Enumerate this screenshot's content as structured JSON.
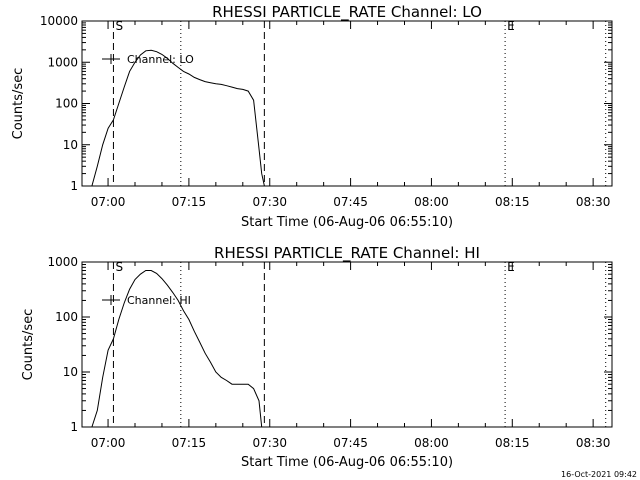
{
  "chart_data": [
    {
      "type": "line",
      "title": "RHESSI PARTICLE_RATE Channel: LO",
      "xlabel": "Start Time (06-Aug-06 06:55:10)",
      "ylabel": "Counts/sec",
      "y_scale": "log",
      "xlim": [
        "06:55:10",
        "08:33:30"
      ],
      "ylim": [
        1,
        10000
      ],
      "x_ticks": [
        "07:00",
        "07:15",
        "07:30",
        "07:45",
        "08:00",
        "08:15",
        "08:30"
      ],
      "y_ticks": [
        "1",
        "10",
        "100",
        "1000",
        "10000"
      ],
      "legend": {
        "position": "top-left",
        "entries": [
          "Channel: LO"
        ]
      },
      "series": [
        {
          "name": "Channel: LO",
          "x": [
            "06:57:00",
            "06:58:00",
            "06:59:00",
            "07:00:00",
            "07:01:00",
            "07:02:00",
            "07:03:00",
            "07:04:00",
            "07:05:00",
            "07:06:00",
            "07:07:00",
            "07:08:00",
            "07:09:00",
            "07:10:00",
            "07:11:00",
            "07:12:00",
            "07:13:00",
            "07:14:00",
            "07:15:00",
            "07:16:00",
            "07:17:00",
            "07:18:00",
            "07:19:00",
            "07:20:00",
            "07:21:00",
            "07:22:00",
            "07:23:00",
            "07:24:00",
            "07:25:00",
            "07:26:00",
            "07:27:00",
            "07:28:00",
            "07:28:30",
            "07:29:00"
          ],
          "y": [
            1,
            3,
            10,
            25,
            40,
            100,
            250,
            600,
            1000,
            1500,
            1900,
            1950,
            1800,
            1550,
            1250,
            950,
            750,
            600,
            520,
            430,
            380,
            340,
            320,
            300,
            290,
            270,
            250,
            230,
            220,
            200,
            120,
            8,
            2,
            1
          ]
        }
      ],
      "annotations": [
        {
          "label": "S",
          "x": "07:01:00",
          "style": "dashed"
        },
        {
          "label": "",
          "x": "07:29:00",
          "style": "dashed"
        },
        {
          "label": "",
          "x": "07:13:30",
          "style": "dotted"
        },
        {
          "label": "E",
          "x": "08:13:40",
          "style": "dotted"
        },
        {
          "label": "",
          "x": "08:32:20",
          "style": "dotted"
        }
      ]
    },
    {
      "type": "line",
      "title": "RHESSI PARTICLE_RATE Channel: HI",
      "xlabel": "Start Time (06-Aug-06 06:55:10)",
      "ylabel": "Counts/sec",
      "y_scale": "log",
      "xlim": [
        "06:55:10",
        "08:33:30"
      ],
      "ylim": [
        1,
        1000
      ],
      "x_ticks": [
        "07:00",
        "07:15",
        "07:30",
        "07:45",
        "08:00",
        "08:15",
        "08:30"
      ],
      "y_ticks": [
        "1",
        "10",
        "100",
        "1000"
      ],
      "legend": {
        "position": "top-left",
        "entries": [
          "Channel: HI"
        ]
      },
      "series": [
        {
          "name": "Channel: HI",
          "x": [
            "06:57:00",
            "06:58:00",
            "06:59:00",
            "07:00:00",
            "07:01:00",
            "07:02:00",
            "07:03:00",
            "07:04:00",
            "07:05:00",
            "07:06:00",
            "07:07:00",
            "07:08:00",
            "07:09:00",
            "07:10:00",
            "07:11:00",
            "07:12:00",
            "07:13:00",
            "07:14:00",
            "07:15:00",
            "07:16:00",
            "07:17:00",
            "07:18:00",
            "07:19:00",
            "07:20:00",
            "07:21:00",
            "07:22:00",
            "07:23:00",
            "07:24:00",
            "07:25:00",
            "07:26:00",
            "07:27:00",
            "07:28:00",
            "07:28:30"
          ],
          "y": [
            1,
            2,
            8,
            25,
            40,
            90,
            180,
            320,
            480,
            600,
            700,
            700,
            620,
            500,
            380,
            280,
            200,
            130,
            90,
            55,
            35,
            22,
            15,
            10,
            8,
            7,
            6,
            6,
            6,
            6,
            5,
            3,
            1
          ]
        }
      ],
      "annotations": [
        {
          "label": "S",
          "x": "07:01:00",
          "style": "dashed"
        },
        {
          "label": "",
          "x": "07:29:00",
          "style": "dashed"
        },
        {
          "label": "",
          "x": "07:13:30",
          "style": "dotted"
        },
        {
          "label": "E",
          "x": "08:13:40",
          "style": "dotted"
        },
        {
          "label": "",
          "x": "08:32:20",
          "style": "dotted"
        }
      ]
    }
  ],
  "footer": {
    "timestamp": "16-Oct-2021 09:42"
  }
}
